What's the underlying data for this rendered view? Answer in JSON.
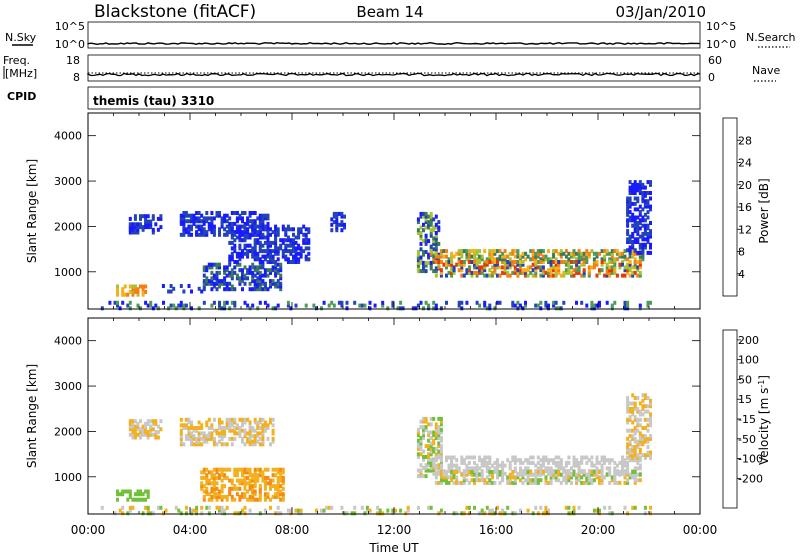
{
  "header": {
    "site": "Blackstone (fitACF)",
    "beam": "Beam 14",
    "date": "03/Jan/2010"
  },
  "strips": {
    "nsky": {
      "label": "N.Sky",
      "ticks_left": [
        "10^5",
        "10^0"
      ],
      "ticks_right": [
        "10^5",
        "10^0"
      ],
      "right_label": "N.Search"
    },
    "freq": {
      "label_1": "Freq.",
      "label_2": "[MHz]",
      "ticks_left": [
        "18",
        "8"
      ],
      "ticks_right": [
        "60",
        "0"
      ],
      "right_label": "Nave"
    },
    "cpid": {
      "label": "CPID",
      "value": "themis (tau) 3310"
    }
  },
  "chart_data": [
    {
      "type": "heatmap",
      "name": "power",
      "ylabel": "Slant Range [km]",
      "yticks": [
        "1000",
        "2000",
        "3000",
        "4000"
      ],
      "ylim": [
        180,
        4500
      ],
      "xlim": [
        0,
        24
      ],
      "colorbar": {
        "label": "Power [dB]",
        "ticks": [
          "4",
          "8",
          "12",
          "16",
          "20",
          "24",
          "28"
        ],
        "range": [
          0,
          32
        ],
        "colors": [
          "#1a1aff",
          "#2344b8",
          "#3c7a5c",
          "#4c9a5c",
          "#a8c238",
          "#f3b11f",
          "#f57f14",
          "#e23a0a"
        ]
      },
      "patches": [
        {
          "t0": 1.1,
          "t1": 2.3,
          "r0": 480,
          "r1": 680,
          "levels": [
            4,
            5,
            6
          ]
        },
        {
          "t0": 1.6,
          "t1": 2.9,
          "r0": 1850,
          "r1": 2250,
          "levels": [
            0,
            1
          ]
        },
        {
          "t0": 2.8,
          "t1": 4.6,
          "r0": 550,
          "r1": 700,
          "levels": [
            0,
            1
          ]
        },
        {
          "t0": 3.6,
          "t1": 7.0,
          "r0": 1800,
          "r1": 2300,
          "levels": [
            0,
            1
          ]
        },
        {
          "t0": 4.5,
          "t1": 7.5,
          "r0": 600,
          "r1": 1150,
          "levels": [
            0,
            1,
            2
          ]
        },
        {
          "t0": 5.5,
          "t1": 8.6,
          "r0": 1200,
          "r1": 2000,
          "levels": [
            0,
            1
          ]
        },
        {
          "t0": 9.5,
          "t1": 10.0,
          "r0": 1900,
          "r1": 2300,
          "levels": [
            0,
            1
          ]
        },
        {
          "t0": 12.9,
          "t1": 13.7,
          "r0": 1000,
          "r1": 2300,
          "levels": [
            0,
            1,
            2,
            4
          ]
        },
        {
          "t0": 13.4,
          "t1": 21.8,
          "r0": 1200,
          "r1": 1450,
          "levels": [
            2,
            3,
            4,
            5,
            6
          ]
        },
        {
          "t0": 13.6,
          "t1": 21.7,
          "r0": 900,
          "r1": 1250,
          "levels": [
            3,
            4,
            5,
            6,
            7,
            1
          ]
        },
        {
          "t0": 21.1,
          "t1": 22.1,
          "r0": 1400,
          "r1": 3000,
          "levels": [
            0,
            1
          ]
        },
        {
          "t0": 0.5,
          "t1": 22.2,
          "r0": 180,
          "r1": 330,
          "levels": [
            0,
            1,
            3
          ]
        }
      ]
    },
    {
      "type": "heatmap",
      "name": "velocity",
      "ylabel": "Slant Range [km]",
      "xlabel": "Time UT",
      "xticks": [
        "00:00",
        "04:00",
        "08:00",
        "12:00",
        "16:00",
        "20:00",
        "00:00"
      ],
      "yticks": [
        "1000",
        "2000",
        "3000",
        "4000"
      ],
      "ylim": [
        180,
        4500
      ],
      "xlim": [
        0,
        24
      ],
      "colorbar": {
        "label": "Velocity [m s^-1]",
        "ticks": [
          "200",
          "100",
          "50",
          "15",
          "-15",
          "-50",
          "-100",
          "-200"
        ],
        "colors": [
          "#2040c0",
          "#2a6a6a",
          "#3c8a3c",
          "#70c03a",
          "#c8c8c8",
          "#f3b11f",
          "#f58a14",
          "#f55514",
          "#e01a0a"
        ]
      },
      "patches": [
        {
          "t0": 1.1,
          "t1": 2.4,
          "r0": 480,
          "r1": 680,
          "levels": [
            3
          ]
        },
        {
          "t0": 1.6,
          "t1": 2.9,
          "r0": 1850,
          "r1": 2250,
          "levels": [
            4,
            5
          ]
        },
        {
          "t0": 3.6,
          "t1": 7.2,
          "r0": 1700,
          "r1": 2300,
          "levels": [
            4,
            5
          ]
        },
        {
          "t0": 4.4,
          "t1": 7.6,
          "r0": 480,
          "r1": 1150,
          "levels": [
            5,
            6,
            5
          ]
        },
        {
          "t0": 12.9,
          "t1": 13.8,
          "r0": 1000,
          "r1": 2300,
          "levels": [
            4,
            3,
            5
          ]
        },
        {
          "t0": 13.5,
          "t1": 21.7,
          "r0": 1050,
          "r1": 1420,
          "levels": [
            4
          ]
        },
        {
          "t0": 13.6,
          "t1": 21.7,
          "r0": 850,
          "r1": 1100,
          "levels": [
            4,
            4,
            5,
            3
          ]
        },
        {
          "t0": 21.1,
          "t1": 22.1,
          "r0": 1400,
          "r1": 2800,
          "levels": [
            4,
            5
          ]
        },
        {
          "t0": 0.5,
          "t1": 22.2,
          "r0": 180,
          "r1": 330,
          "levels": [
            3,
            4,
            5
          ]
        }
      ]
    }
  ]
}
